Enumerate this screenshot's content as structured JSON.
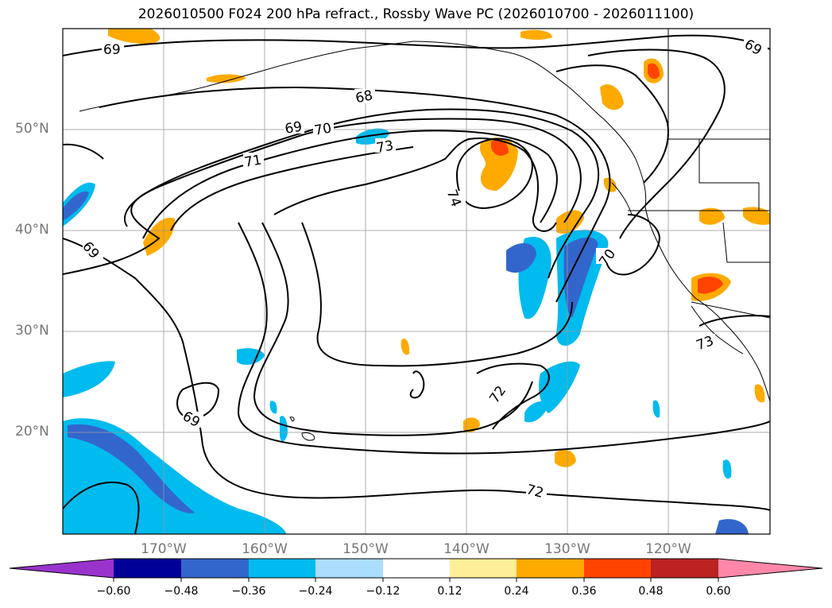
{
  "title": "2026010500 F024 200 hPa refract., Rossby Wave PC (2026010700 - 2026011100)",
  "lat_labels": [
    "50°N",
    "40°N",
    "30°N",
    "20°N"
  ],
  "lon_labels": [
    "170°W",
    "160°W",
    "150°W",
    "140°W",
    "130°W",
    "120°W"
  ],
  "contour_labels": [
    "69",
    "68",
    "69",
    "70",
    "73",
    "71",
    "74",
    "69",
    "70",
    "73",
    "72",
    "72",
    "69",
    "69"
  ],
  "colorbar": {
    "ticks": [
      "−0.60",
      "−0.48",
      "−0.36",
      "−0.24",
      "−0.12",
      "0.12",
      "0.24",
      "0.36",
      "0.48",
      "0.60"
    ],
    "colors": [
      "#9933cc",
      "#000099",
      "#3366cc",
      "#00bbee",
      "#aaddff",
      "#ffffff",
      "#ffee99",
      "#ffaa00",
      "#ff4400",
      "#bb2222",
      "#ff88aa"
    ]
  },
  "colors": {
    "coast": "#000000",
    "grid": "#999999",
    "contour": "#000000"
  }
}
